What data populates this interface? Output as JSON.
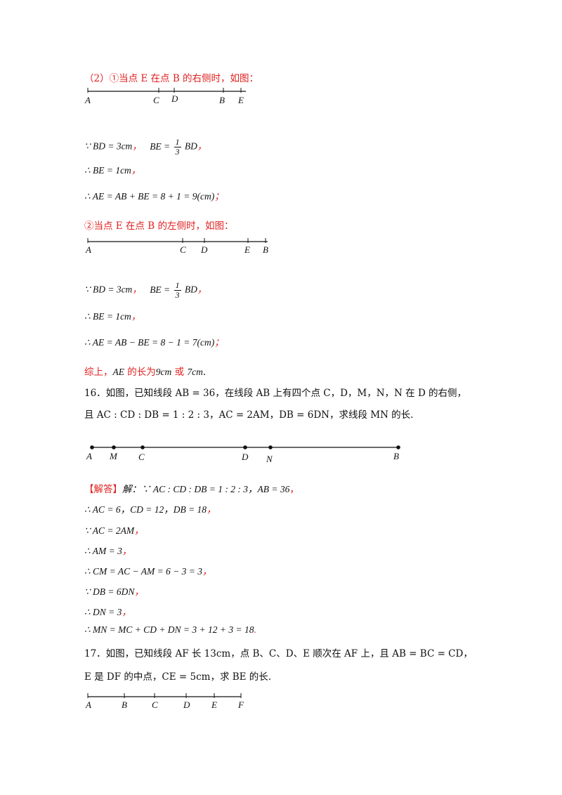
{
  "p2_header": "（2）①当点 E 在点 B 的右侧时，如图：",
  "fig1": {
    "labels": [
      "A",
      "C",
      "D",
      "B",
      "E"
    ]
  },
  "s1": {
    "l1a": "∵ BD = 3cm",
    "l1_bx": "BE =",
    "l1_num": "1",
    "l1_den": "3",
    "l1_bd": "BD",
    "l2": "∴ BE = 1cm",
    "l3": "∴ AE = AB + BE = 8 + 1 = 9(cm)"
  },
  "p2b_header": "②当点 E 在点 B 的左侧时，如图：",
  "fig2": {
    "labels": [
      "A",
      "C",
      "D",
      "E",
      "B"
    ]
  },
  "s2": {
    "l1a": "∵ BD = 3cm",
    "l1_bx": "BE =",
    "l1_num": "1",
    "l1_den": "3",
    "l1_bd": "BD",
    "l2": "∴ BE = 1cm",
    "l3": "∴ AE = AB − BE = 8 − 1 = 7(cm)"
  },
  "conclusion": {
    "pre": "综上，",
    "ae": "AE",
    "mid": " 的长为",
    "v1": "9cm",
    "or": " 或 ",
    "v2": "7cm",
    "end": "."
  },
  "q16": {
    "line1": "16．如图，已知线段 AB = 36，在线段 AB 上有四个点 C，D，M，N，N 在 D 的右侧，",
    "line2": "且 AC : CD : DB = 1 : 2 : 3，AC = 2AM，DB = 6DN，求线段 MN 的长."
  },
  "fig3": {
    "labels": [
      "A",
      "M",
      "C",
      "D",
      "N",
      "B"
    ]
  },
  "sol16": {
    "tag": "【解答】",
    "l0": "解：∵ AC : CD : DB = 1 : 2 : 3，AB = 36",
    "l1": "∴ AC = 6，CD = 12，DB = 18",
    "l2": "∵ AC = 2AM",
    "l3": "∴ AM = 3",
    "l4": "∴ CM = AC − AM = 6 − 3 = 3",
    "l5": "∵ DB = 6DN",
    "l6": "∴ DN = 3",
    "l7": "∴ MN = MC + CD + DN = 3 + 12 + 3 = 18"
  },
  "q17": {
    "line1": "17．如图，已知线段 AF 长 13cm，点 B、C、D、E 顺次在 AF 上，且 AB = BC = CD，",
    "line2": "E 是 DF 的中点，CE = 5cm，求 BE 的长."
  },
  "fig4": {
    "labels": [
      "A",
      "B",
      "C",
      "D",
      "E",
      "F"
    ]
  }
}
